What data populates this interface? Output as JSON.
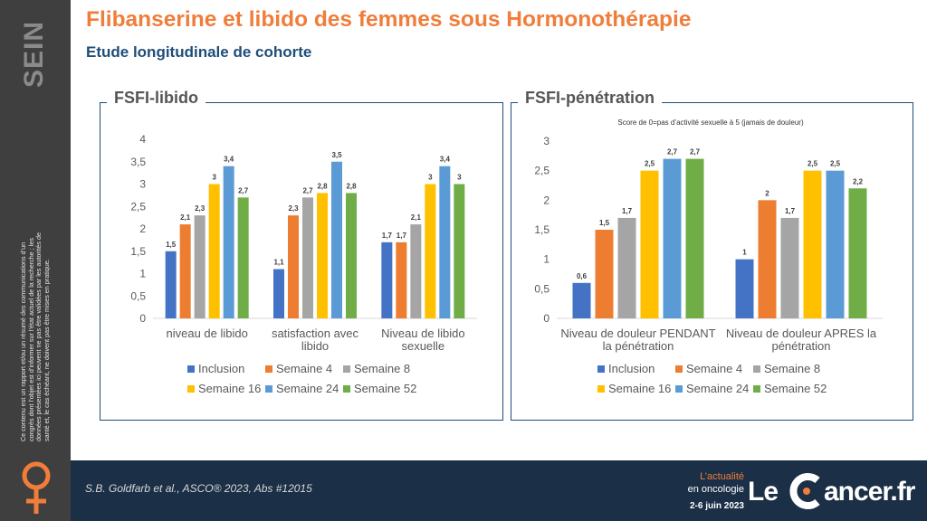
{
  "sidebar": {
    "section": "SEIN",
    "disclaimer": "Ce contenu est un rapport et/ou un résumé des communications d’un congrès dont l’objet est d’informer sur l’état actuel de la recherche ; les données présentées ici peuvent ne pas être validées par les autorités de santé et, le cas échéant, ne doivent pas être mises en pratique."
  },
  "header": {
    "title": "Flibanserine et libido des femmes sous Hormonothérapie",
    "subtitle": "Etude longitudinale de cohorte"
  },
  "colors": {
    "Inclusion": "#4472c4",
    "Semaine 4": "#ed7d31",
    "Semaine 8": "#a5a5a5",
    "Semaine 16": "#ffc000",
    "Semaine 24": "#5b9bd5",
    "Semaine 52": "#70ad47",
    "title": "#f07d3a",
    "subtitle": "#1f4e79",
    "footer": "#1b2f46"
  },
  "legend": [
    "Inclusion",
    "Semaine 4",
    "Semaine 8",
    "Semaine 16",
    "Semaine 24",
    "Semaine 52"
  ],
  "chart_data": [
    {
      "type": "bar",
      "title": "FSFI-libido",
      "categories": [
        [
          "niveau de libido"
        ],
        [
          "satisfaction avec",
          "libido"
        ],
        [
          "Niveau de libido",
          "sexuelle"
        ]
      ],
      "series": [
        {
          "name": "Inclusion",
          "values": [
            1.5,
            1.1,
            1.7
          ]
        },
        {
          "name": "Semaine 4",
          "values": [
            2.1,
            2.3,
            1.7
          ]
        },
        {
          "name": "Semaine 8",
          "values": [
            2.3,
            2.7,
            2.1
          ]
        },
        {
          "name": "Semaine 16",
          "values": [
            3,
            2.8,
            3
          ]
        },
        {
          "name": "Semaine 24",
          "values": [
            3.4,
            3.5,
            3.4
          ]
        },
        {
          "name": "Semaine 52",
          "values": [
            2.7,
            2.8,
            3
          ]
        }
      ],
      "labels": [
        [
          "1,5",
          "1,1",
          "1,7"
        ],
        [
          "2,1",
          "2,3",
          "1,7"
        ],
        [
          "2,3",
          "2,7",
          "2,1"
        ],
        [
          "3",
          "2,8",
          "3"
        ],
        [
          "3,4",
          "3,5",
          "3,4"
        ],
        [
          "2,7",
          "2,8",
          "3"
        ]
      ],
      "ylim": [
        0,
        4
      ],
      "yticks": [
        "0",
        "0,5",
        "1",
        "1,5",
        "2",
        "2,5",
        "3",
        "3,5",
        "4"
      ],
      "legend_position": "bottom",
      "grid": false
    },
    {
      "type": "bar",
      "title": "FSFI-pénétration",
      "subtitle": "Score de 0=pas d’activité sexuelle à 5 (jamais de douleur)",
      "categories": [
        [
          "Niveau de douleur PENDANT",
          "la pénétration"
        ],
        [
          "Niveau de douleur APRES la",
          "pénétration"
        ]
      ],
      "series": [
        {
          "name": "Inclusion",
          "values": [
            0.6,
            1
          ]
        },
        {
          "name": "Semaine 4",
          "values": [
            1.5,
            2
          ]
        },
        {
          "name": "Semaine 8",
          "values": [
            1.7,
            1.7
          ]
        },
        {
          "name": "Semaine 16",
          "values": [
            2.5,
            2.5
          ]
        },
        {
          "name": "Semaine 24",
          "values": [
            2.7,
            2.5
          ]
        },
        {
          "name": "Semaine 52",
          "values": [
            2.7,
            2.2
          ]
        }
      ],
      "labels": [
        [
          "0,6",
          "1"
        ],
        [
          "1,5",
          "2"
        ],
        [
          "1,7",
          "1,7"
        ],
        [
          "2,5",
          "2,5"
        ],
        [
          "2,7",
          "2,5"
        ],
        [
          "2,7",
          "2,2"
        ]
      ],
      "ylim": [
        0,
        3
      ],
      "yticks": [
        "0",
        "0,5",
        "1",
        "1,5",
        "2",
        "2,5",
        "3"
      ],
      "legend_position": "bottom",
      "grid": false
    }
  ],
  "footer": {
    "citation": "S.B. Goldfarb et al., ASCO® 2023, Abs #12015",
    "actualite": "L’actualité",
    "oncologie": "en oncologie",
    "dates": "2-6 juin 2023",
    "logo_le": "Le",
    "logo_rest": "ancer.fr"
  }
}
